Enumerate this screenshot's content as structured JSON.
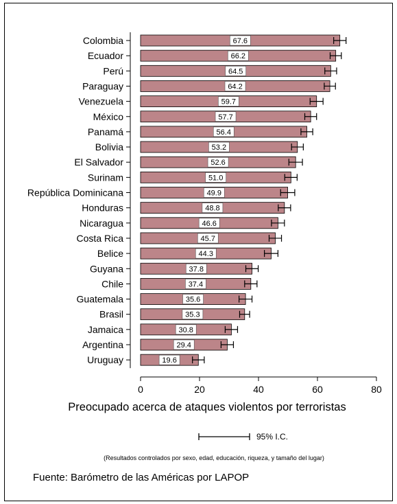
{
  "chart_data": {
    "type": "bar",
    "orientation": "horizontal",
    "categories": [
      "Colombia",
      "Ecuador",
      "Perú",
      "Paraguay",
      "Venezuela",
      "México",
      "Panamá",
      "Bolivia",
      "El Salvador",
      "Surinam",
      "República Dominicana",
      "Honduras",
      "Nicaragua",
      "Costa Rica",
      "Belice",
      "Guyana",
      "Chile",
      "Guatemala",
      "Brasil",
      "Jamaica",
      "Argentina",
      "Uruguay"
    ],
    "values": [
      67.6,
      66.2,
      64.5,
      64.2,
      59.7,
      57.7,
      56.4,
      53.2,
      52.6,
      51.0,
      49.9,
      48.8,
      46.6,
      45.7,
      44.3,
      37.8,
      37.4,
      35.6,
      35.3,
      30.8,
      29.4,
      19.6
    ],
    "value_labels": [
      "67.6",
      "66.2",
      "64.5",
      "64.2",
      "59.7",
      "57.7",
      "56.4",
      "53.2",
      "52.6",
      "51.0",
      "49.9",
      "48.8",
      "46.6",
      "45.7",
      "44.3",
      "37.8",
      "37.4",
      "35.6",
      "35.3",
      "30.8",
      "29.4",
      "19.6"
    ],
    "ci_low": [
      65.5,
      64.3,
      62.5,
      62.3,
      57.5,
      55.7,
      54.4,
      51.2,
      50.3,
      48.9,
      47.5,
      46.7,
      44.4,
      43.6,
      42.0,
      35.7,
      35.3,
      33.4,
      33.6,
      28.7,
      27.3,
      17.6
    ],
    "ci_high": [
      69.7,
      68.1,
      66.5,
      66.1,
      61.9,
      59.7,
      58.4,
      55.2,
      54.9,
      53.1,
      52.3,
      50.9,
      48.8,
      47.8,
      46.6,
      39.9,
      39.5,
      37.8,
      37.0,
      32.9,
      31.5,
      21.6
    ],
    "xlabel": "Preocupado acerca de ataques violentos por terroristas",
    "xlim": [
      0,
      80
    ],
    "xticks": [
      0,
      20,
      40,
      60,
      80
    ],
    "bar_color": "#bc8589",
    "errorbar_color": "#000000",
    "grid": false,
    "legend": {
      "label": "95% I.C.",
      "placement": "bottom-center"
    }
  },
  "footnote": "(Resultados controlados por sexo, edad, educación, riqueza, y tamaño del lugar)",
  "source": "Fuente: Barómetro de las Américas por LAPOP"
}
